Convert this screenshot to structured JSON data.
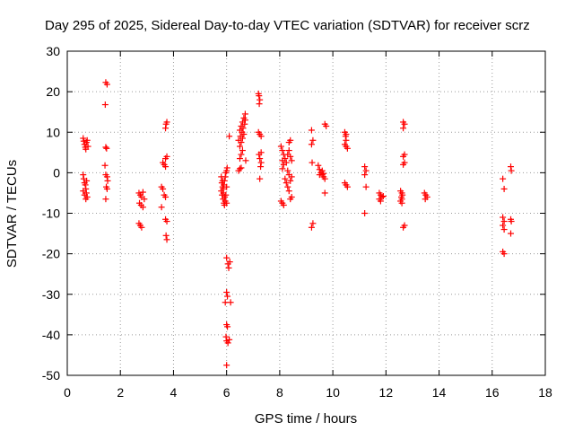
{
  "chart_data": {
    "type": "scatter",
    "title": "Day 295 of 2025, Sidereal Day-to-day VTEC variation (SDTVAR) for receiver scrz",
    "xlabel": "GPS time / hours",
    "ylabel": "SDTVAR / TECUs",
    "xlim": [
      0,
      18
    ],
    "ylim": [
      -50,
      30
    ],
    "x_ticks": [
      0,
      2,
      4,
      6,
      8,
      10,
      12,
      14,
      16,
      18
    ],
    "y_ticks": [
      -50,
      -40,
      -30,
      -20,
      -10,
      0,
      10,
      20,
      30
    ],
    "grid": true,
    "marker": "+",
    "color": "#ff0000",
    "series": [
      {
        "name": "SDTVAR",
        "points": [
          [
            0.6,
            8.5
          ],
          [
            0.62,
            7.8
          ],
          [
            0.65,
            7.0
          ],
          [
            0.68,
            6.3
          ],
          [
            0.7,
            5.8
          ],
          [
            0.72,
            7.5
          ],
          [
            0.75,
            8.0
          ],
          [
            0.78,
            6.5
          ],
          [
            0.6,
            -0.5
          ],
          [
            0.62,
            -1.5
          ],
          [
            0.65,
            -2.5
          ],
          [
            0.68,
            -3.0
          ],
          [
            0.7,
            -4.0
          ],
          [
            0.72,
            -5.0
          ],
          [
            0.75,
            -6.0
          ],
          [
            0.6,
            -4.5
          ],
          [
            0.65,
            -5.5
          ],
          [
            0.7,
            -6.5
          ],
          [
            0.73,
            -2.0
          ],
          [
            1.45,
            22.3
          ],
          [
            1.5,
            21.8
          ],
          [
            1.43,
            16.8
          ],
          [
            1.45,
            6.3
          ],
          [
            1.48,
            6.0
          ],
          [
            1.42,
            1.8
          ],
          [
            1.45,
            -0.5
          ],
          [
            1.5,
            -1.0
          ],
          [
            1.52,
            -2.0
          ],
          [
            1.47,
            -3.5
          ],
          [
            1.5,
            -4.0
          ],
          [
            1.45,
            -6.5
          ],
          [
            2.7,
            -5.0
          ],
          [
            2.75,
            -5.5
          ],
          [
            2.8,
            -6.0
          ],
          [
            2.72,
            -7.5
          ],
          [
            2.78,
            -8.0
          ],
          [
            2.85,
            -8.5
          ],
          [
            2.7,
            -12.5
          ],
          [
            2.75,
            -13.0
          ],
          [
            2.8,
            -13.5
          ],
          [
            2.85,
            -4.8
          ],
          [
            2.9,
            -6.5
          ],
          [
            3.55,
            -3.5
          ],
          [
            3.6,
            -4.0
          ],
          [
            3.65,
            -5.5
          ],
          [
            3.7,
            -6.0
          ],
          [
            3.55,
            -8.5
          ],
          [
            3.6,
            2.5
          ],
          [
            3.65,
            2.0
          ],
          [
            3.7,
            1.5
          ],
          [
            3.7,
            3.5
          ],
          [
            3.75,
            4.0
          ],
          [
            3.7,
            11.0
          ],
          [
            3.72,
            12.0
          ],
          [
            3.75,
            12.5
          ],
          [
            3.7,
            -11.5
          ],
          [
            3.75,
            -12.0
          ],
          [
            3.72,
            -15.5
          ],
          [
            3.75,
            -16.5
          ],
          [
            5.8,
            -1.0
          ],
          [
            5.82,
            -2.5
          ],
          [
            5.85,
            -3.5
          ],
          [
            5.8,
            -4.5
          ],
          [
            5.83,
            -5.5
          ],
          [
            5.87,
            -6.5
          ],
          [
            5.9,
            -7.5
          ],
          [
            5.92,
            -8.0
          ],
          [
            5.95,
            -7.0
          ],
          [
            5.88,
            -5.0
          ],
          [
            5.9,
            -3.0
          ],
          [
            5.92,
            -2.0
          ],
          [
            5.95,
            -1.0
          ],
          [
            5.97,
            0.0
          ],
          [
            6.0,
            0.5
          ],
          [
            6.02,
            1.2
          ],
          [
            5.85,
            -2.0
          ],
          [
            5.87,
            -4.0
          ],
          [
            5.93,
            -6.0
          ],
          [
            6.0,
            -7.5
          ],
          [
            6.0,
            -3.5
          ],
          [
            5.97,
            -5.5
          ],
          [
            6.1,
            9.0
          ],
          [
            6.0,
            -21.0
          ],
          [
            6.05,
            -22.5
          ],
          [
            6.08,
            -23.5
          ],
          [
            6.12,
            -22.0
          ],
          [
            6.15,
            -32.0
          ],
          [
            6.0,
            -29.5
          ],
          [
            6.03,
            -30.5
          ],
          [
            5.95,
            -32.0
          ],
          [
            6.0,
            -37.5
          ],
          [
            6.03,
            -38.0
          ],
          [
            5.98,
            -40.5
          ],
          [
            6.0,
            -41.5
          ],
          [
            6.05,
            -42.0
          ],
          [
            6.1,
            -41.2
          ],
          [
            6.0,
            -47.5
          ],
          [
            6.45,
            0.5
          ],
          [
            6.5,
            1.0
          ],
          [
            6.55,
            1.2
          ],
          [
            6.5,
            3.5
          ],
          [
            6.55,
            4.5
          ],
          [
            6.6,
            5.5
          ],
          [
            6.5,
            6.5
          ],
          [
            6.55,
            7.5
          ],
          [
            6.6,
            8.5
          ],
          [
            6.65,
            9.5
          ],
          [
            6.5,
            10.5
          ],
          [
            6.55,
            11.5
          ],
          [
            6.6,
            12.5
          ],
          [
            6.65,
            13.5
          ],
          [
            6.7,
            14.5
          ],
          [
            6.45,
            8.0
          ],
          [
            6.52,
            9.0
          ],
          [
            6.58,
            10.0
          ],
          [
            6.62,
            11.0
          ],
          [
            6.68,
            12.0
          ],
          [
            6.7,
            13.0
          ],
          [
            6.72,
            3.0
          ],
          [
            7.2,
            19.5
          ],
          [
            7.22,
            19.0
          ],
          [
            7.25,
            18.0
          ],
          [
            7.23,
            17.0
          ],
          [
            7.2,
            10.0
          ],
          [
            7.25,
            9.5
          ],
          [
            7.3,
            9.0
          ],
          [
            7.22,
            4.5
          ],
          [
            7.25,
            3.5
          ],
          [
            7.3,
            2.5
          ],
          [
            7.28,
            1.5
          ],
          [
            7.25,
            -1.5
          ],
          [
            7.3,
            5.0
          ],
          [
            8.05,
            6.5
          ],
          [
            8.1,
            5.5
          ],
          [
            8.15,
            4.5
          ],
          [
            8.2,
            3.5
          ],
          [
            8.25,
            2.5
          ],
          [
            8.1,
            3.0
          ],
          [
            8.15,
            2.0
          ],
          [
            8.1,
            1.0
          ],
          [
            8.05,
            -7.0
          ],
          [
            8.1,
            -7.5
          ],
          [
            8.15,
            -8.0
          ],
          [
            8.2,
            -1.5
          ],
          [
            8.25,
            -2.5
          ],
          [
            8.3,
            -3.5
          ],
          [
            8.35,
            -4.5
          ],
          [
            8.4,
            -2.0
          ],
          [
            8.45,
            -1.0
          ],
          [
            8.3,
            4.5
          ],
          [
            8.35,
            5.5
          ],
          [
            8.4,
            4.0
          ],
          [
            8.45,
            3.0
          ],
          [
            8.35,
            7.5
          ],
          [
            8.4,
            8.0
          ],
          [
            8.45,
            -6.0
          ],
          [
            8.4,
            -6.5
          ],
          [
            8.3,
            0.5
          ],
          [
            8.35,
            -0.5
          ],
          [
            9.2,
            10.5
          ],
          [
            9.25,
            8.0
          ],
          [
            9.2,
            7.0
          ],
          [
            9.22,
            2.5
          ],
          [
            9.25,
            -12.5
          ],
          [
            9.2,
            -13.5
          ],
          [
            9.45,
            1.8
          ],
          [
            9.5,
            0.8
          ],
          [
            9.55,
            0.0
          ],
          [
            9.6,
            -0.5
          ],
          [
            9.65,
            -1.0
          ],
          [
            9.7,
            -1.5
          ],
          [
            9.5,
            -0.5
          ],
          [
            9.6,
            0.5
          ],
          [
            9.65,
            -0.2
          ],
          [
            9.7,
            12.0
          ],
          [
            9.75,
            11.5
          ],
          [
            9.7,
            -5.0
          ],
          [
            10.45,
            10.0
          ],
          [
            10.5,
            9.5
          ],
          [
            10.48,
            9.0
          ],
          [
            10.5,
            8.0
          ],
          [
            10.45,
            7.0
          ],
          [
            10.5,
            6.5
          ],
          [
            10.55,
            6.0
          ],
          [
            10.45,
            -2.5
          ],
          [
            10.5,
            -3.0
          ],
          [
            10.55,
            -3.5
          ],
          [
            11.2,
            1.5
          ],
          [
            11.25,
            0.5
          ],
          [
            11.2,
            -0.5
          ],
          [
            11.25,
            -3.5
          ],
          [
            11.2,
            -10.0
          ],
          [
            11.75,
            -5.0
          ],
          [
            11.8,
            -5.5
          ],
          [
            11.85,
            -6.0
          ],
          [
            11.75,
            -6.5
          ],
          [
            11.8,
            -7.0
          ],
          [
            11.9,
            -5.8
          ],
          [
            12.55,
            -4.5
          ],
          [
            12.6,
            -5.0
          ],
          [
            12.62,
            -5.5
          ],
          [
            12.58,
            -6.0
          ],
          [
            12.6,
            -6.5
          ],
          [
            12.55,
            -7.0
          ],
          [
            12.6,
            -7.5
          ],
          [
            12.65,
            12.5
          ],
          [
            12.7,
            12.0
          ],
          [
            12.65,
            11.0
          ],
          [
            12.7,
            4.5
          ],
          [
            12.65,
            4.0
          ],
          [
            12.7,
            2.5
          ],
          [
            12.65,
            2.0
          ],
          [
            12.7,
            -13.0
          ],
          [
            12.65,
            -13.5
          ],
          [
            13.45,
            -5.0
          ],
          [
            13.5,
            -5.5
          ],
          [
            13.55,
            -6.0
          ],
          [
            13.48,
            -6.5
          ],
          [
            16.4,
            -1.5
          ],
          [
            16.45,
            -4.0
          ],
          [
            16.4,
            -11.0
          ],
          [
            16.45,
            -12.0
          ],
          [
            16.4,
            -13.0
          ],
          [
            16.45,
            -14.0
          ],
          [
            16.4,
            -19.5
          ],
          [
            16.45,
            -20.0
          ],
          [
            16.7,
            1.5
          ],
          [
            16.72,
            0.5
          ],
          [
            16.7,
            -11.5
          ],
          [
            16.72,
            -12.0
          ],
          [
            16.7,
            -15.0
          ]
        ]
      }
    ]
  }
}
